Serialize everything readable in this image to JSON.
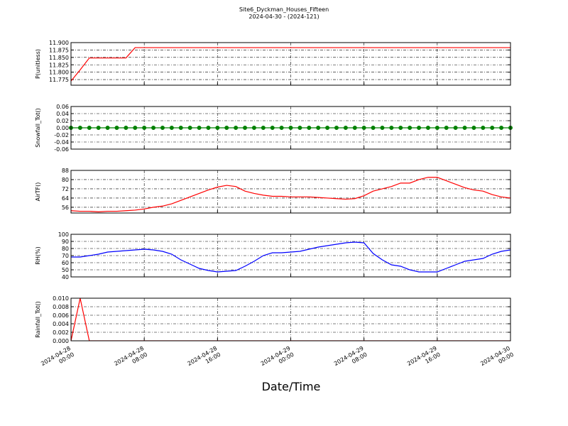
{
  "chart_data": [
    {
      "type": "line",
      "title": "Site6_Dyckman_Houses_Fifteen",
      "subtitle": "2024-04-30 - (2024-121)",
      "ylabel": "P(unitless)",
      "x": [
        "2024-04-28 00:00",
        "2024-04-28 01:00",
        "2024-04-28 02:00",
        "2024-04-28 03:00",
        "2024-04-28 04:00",
        "2024-04-28 05:00",
        "2024-04-28 06:00",
        "2024-04-28 07:00",
        "2024-04-28 08:00",
        "2024-04-28 09:00",
        "2024-04-28 10:00",
        "2024-04-28 11:00",
        "2024-04-28 12:00",
        "2024-04-28 13:00",
        "2024-04-28 14:00",
        "2024-04-28 15:00",
        "2024-04-28 16:00",
        "2024-04-28 17:00",
        "2024-04-28 18:00",
        "2024-04-28 19:00",
        "2024-04-28 20:00",
        "2024-04-28 21:00",
        "2024-04-28 22:00",
        "2024-04-28 23:00",
        "2024-04-29 00:00",
        "2024-04-29 01:00",
        "2024-04-29 02:00",
        "2024-04-29 03:00",
        "2024-04-29 04:00",
        "2024-04-29 05:00",
        "2024-04-29 06:00",
        "2024-04-29 07:00",
        "2024-04-29 08:00",
        "2024-04-29 09:00",
        "2024-04-29 10:00",
        "2024-04-29 11:00",
        "2024-04-29 12:00",
        "2024-04-29 13:00",
        "2024-04-29 14:00",
        "2024-04-29 15:00",
        "2024-04-29 16:00",
        "2024-04-29 17:00",
        "2024-04-29 18:00",
        "2024-04-29 19:00",
        "2024-04-29 20:00",
        "2024-04-29 21:00",
        "2024-04-29 22:00",
        "2024-04-29 23:00",
        "2024-04-30 00:00"
      ],
      "series": [
        {
          "name": "P(unitless)",
          "color": "#ff0000",
          "values": [
            11.77,
            11.808,
            11.848,
            11.848,
            11.848,
            11.848,
            11.848,
            11.883,
            11.883,
            11.883,
            11.883,
            11.883,
            11.883,
            11.883,
            11.883,
            11.883,
            11.883,
            11.883,
            11.883,
            11.883,
            11.883,
            11.883,
            11.883,
            11.883,
            11.883,
            11.883,
            11.883,
            11.883,
            11.883,
            11.883,
            11.883,
            11.883,
            11.883,
            11.883,
            11.883,
            11.883,
            11.883,
            11.883,
            11.883,
            11.883,
            11.883,
            11.883,
            11.883,
            11.883,
            11.883,
            11.883,
            11.883,
            11.883,
            11.883
          ]
        }
      ],
      "xlim": [
        "2024-04-28 00:00",
        "2024-04-30 00:00"
      ],
      "ylim": [
        11.756,
        11.9
      ],
      "yticks": [
        {
          "value": 11.9,
          "label": "11.900"
        },
        11.875,
        {
          "value": 11.85,
          "label": "11.850"
        },
        11.825,
        {
          "value": 11.8,
          "label": "11.800"
        },
        11.775
      ],
      "grid": true
    },
    {
      "type": "line",
      "ylabel": "Snowfall_Tot()",
      "x": [
        "2024-04-28 00:00",
        "2024-04-28 01:00",
        "2024-04-28 02:00",
        "2024-04-28 03:00",
        "2024-04-28 04:00",
        "2024-04-28 05:00",
        "2024-04-28 06:00",
        "2024-04-28 07:00",
        "2024-04-28 08:00",
        "2024-04-28 09:00",
        "2024-04-28 10:00",
        "2024-04-28 11:00",
        "2024-04-28 12:00",
        "2024-04-28 13:00",
        "2024-04-28 14:00",
        "2024-04-28 15:00",
        "2024-04-28 16:00",
        "2024-04-28 17:00",
        "2024-04-28 18:00",
        "2024-04-28 19:00",
        "2024-04-28 20:00",
        "2024-04-28 21:00",
        "2024-04-28 22:00",
        "2024-04-28 23:00",
        "2024-04-29 00:00",
        "2024-04-29 01:00",
        "2024-04-29 02:00",
        "2024-04-29 03:00",
        "2024-04-29 04:00",
        "2024-04-29 05:00",
        "2024-04-29 06:00",
        "2024-04-29 07:00",
        "2024-04-29 08:00",
        "2024-04-29 09:00",
        "2024-04-29 10:00",
        "2024-04-29 11:00",
        "2024-04-29 12:00",
        "2024-04-29 13:00",
        "2024-04-29 14:00",
        "2024-04-29 15:00",
        "2024-04-29 16:00",
        "2024-04-29 17:00",
        "2024-04-29 18:00",
        "2024-04-29 19:00",
        "2024-04-29 20:00",
        "2024-04-29 21:00",
        "2024-04-29 22:00",
        "2024-04-29 23:00",
        "2024-04-30 00:00"
      ],
      "series": [
        {
          "name": "Snowfall_Tot()",
          "color": "#008000",
          "markers": true,
          "values": [
            0,
            0,
            0,
            0,
            0,
            0,
            0,
            0,
            0,
            0,
            0,
            0,
            0,
            0,
            0,
            0,
            0,
            0,
            0,
            0,
            0,
            0,
            0,
            0,
            0,
            0,
            0,
            0,
            0,
            0,
            0,
            0,
            0,
            0,
            0,
            0,
            0,
            0,
            0,
            0,
            0,
            0,
            0,
            0,
            0,
            0,
            0,
            0,
            0
          ]
        }
      ],
      "xlim": [
        "2024-04-28 00:00",
        "2024-04-30 00:00"
      ],
      "ylim": [
        -0.06,
        0.06
      ],
      "yticks": [
        0.06,
        0.04,
        0.02,
        {
          "value": 0,
          "label": "0.00"
        },
        -0.02,
        -0.04,
        -0.06
      ],
      "grid": true
    },
    {
      "type": "line",
      "ylabel": "AirTF()",
      "x": [
        "2024-04-28 00:00",
        "2024-04-28 01:00",
        "2024-04-28 02:00",
        "2024-04-28 03:00",
        "2024-04-28 04:00",
        "2024-04-28 05:00",
        "2024-04-28 06:00",
        "2024-04-28 07:00",
        "2024-04-28 08:00",
        "2024-04-28 09:00",
        "2024-04-28 10:00",
        "2024-04-28 11:00",
        "2024-04-28 12:00",
        "2024-04-28 13:00",
        "2024-04-28 14:00",
        "2024-04-28 15:00",
        "2024-04-28 16:00",
        "2024-04-28 17:00",
        "2024-04-28 18:00",
        "2024-04-28 19:00",
        "2024-04-28 20:00",
        "2024-04-28 21:00",
        "2024-04-28 22:00",
        "2024-04-28 23:00",
        "2024-04-29 00:00",
        "2024-04-29 01:00",
        "2024-04-29 02:00",
        "2024-04-29 03:00",
        "2024-04-29 04:00",
        "2024-04-29 05:00",
        "2024-04-29 06:00",
        "2024-04-29 07:00",
        "2024-04-29 08:00",
        "2024-04-29 09:00",
        "2024-04-29 10:00",
        "2024-04-29 11:00",
        "2024-04-29 12:00",
        "2024-04-29 13:00",
        "2024-04-29 14:00",
        "2024-04-29 15:00",
        "2024-04-29 16:00",
        "2024-04-29 17:00",
        "2024-04-29 18:00",
        "2024-04-29 19:00",
        "2024-04-29 20:00",
        "2024-04-29 21:00",
        "2024-04-29 22:00",
        "2024-04-29 23:00",
        "2024-04-30 00:00"
      ],
      "series": [
        {
          "name": "AirTF()",
          "color": "#ff0000",
          "values": [
            53,
            52.5,
            52.5,
            52,
            52.5,
            52.5,
            53,
            53.5,
            54.5,
            56,
            57,
            59,
            62,
            65,
            68,
            71,
            73.5,
            75,
            74,
            70,
            68,
            66.5,
            65.5,
            65.5,
            65,
            65,
            65,
            64.5,
            64,
            63.5,
            63,
            63.5,
            66,
            70,
            72,
            74,
            77,
            77,
            80,
            82,
            82,
            79,
            76,
            73,
            71,
            70,
            67,
            65,
            64
          ]
        }
      ],
      "xlim": [
        "2024-04-28 00:00",
        "2024-04-30 00:00"
      ],
      "ylim": [
        51,
        88
      ],
      "yticks": [
        88,
        80,
        72,
        64,
        56
      ],
      "grid": true
    },
    {
      "type": "line",
      "ylabel": "RH(%)",
      "x": [
        "2024-04-28 00:00",
        "2024-04-28 01:00",
        "2024-04-28 02:00",
        "2024-04-28 03:00",
        "2024-04-28 04:00",
        "2024-04-28 05:00",
        "2024-04-28 06:00",
        "2024-04-28 07:00",
        "2024-04-28 08:00",
        "2024-04-28 09:00",
        "2024-04-28 10:00",
        "2024-04-28 11:00",
        "2024-04-28 12:00",
        "2024-04-28 13:00",
        "2024-04-28 14:00",
        "2024-04-28 15:00",
        "2024-04-28 16:00",
        "2024-04-28 17:00",
        "2024-04-28 18:00",
        "2024-04-28 19:00",
        "2024-04-28 20:00",
        "2024-04-28 21:00",
        "2024-04-28 22:00",
        "2024-04-28 23:00",
        "2024-04-29 00:00",
        "2024-04-29 01:00",
        "2024-04-29 02:00",
        "2024-04-29 03:00",
        "2024-04-29 04:00",
        "2024-04-29 05:00",
        "2024-04-29 06:00",
        "2024-04-29 07:00",
        "2024-04-29 08:00",
        "2024-04-29 09:00",
        "2024-04-29 10:00",
        "2024-04-29 11:00",
        "2024-04-29 12:00",
        "2024-04-29 13:00",
        "2024-04-29 14:00",
        "2024-04-29 15:00",
        "2024-04-29 16:00",
        "2024-04-29 17:00",
        "2024-04-29 18:00",
        "2024-04-29 19:00",
        "2024-04-29 20:00",
        "2024-04-29 21:00",
        "2024-04-29 22:00",
        "2024-04-29 23:00",
        "2024-04-30 00:00"
      ],
      "series": [
        {
          "name": "RH(%)",
          "color": "#0000ff",
          "values": [
            68,
            68,
            70,
            72,
            75,
            76,
            77,
            78,
            79,
            78,
            76,
            72,
            64,
            58,
            52,
            49,
            47,
            48,
            49,
            55,
            62,
            70,
            74,
            74,
            75,
            76,
            79,
            82,
            84,
            86,
            88,
            89,
            88,
            73,
            64,
            57,
            55,
            50,
            47,
            47,
            47,
            52,
            57,
            62,
            64,
            66,
            72,
            76,
            78
          ]
        }
      ],
      "xlim": [
        "2024-04-28 00:00",
        "2024-04-30 00:00"
      ],
      "ylim": [
        40,
        100
      ],
      "yticks": [
        100,
        90,
        80,
        70,
        60,
        50,
        40
      ],
      "grid": true
    },
    {
      "type": "line",
      "ylabel": "Rainfall_Tot()",
      "xlabel": "Date/Time",
      "x": [
        "2024-04-28 00:00",
        "2024-04-28 01:00",
        "2024-04-28 02:00",
        "2024-04-28 03:00",
        "2024-04-28 04:00",
        "2024-04-28 05:00",
        "2024-04-28 06:00",
        "2024-04-28 07:00",
        "2024-04-28 08:00",
        "2024-04-28 09:00",
        "2024-04-28 10:00",
        "2024-04-28 11:00",
        "2024-04-28 12:00",
        "2024-04-28 13:00",
        "2024-04-28 14:00",
        "2024-04-28 15:00",
        "2024-04-28 16:00",
        "2024-04-28 17:00",
        "2024-04-28 18:00",
        "2024-04-28 19:00",
        "2024-04-28 20:00",
        "2024-04-28 21:00",
        "2024-04-28 22:00",
        "2024-04-28 23:00",
        "2024-04-29 00:00",
        "2024-04-29 01:00",
        "2024-04-29 02:00",
        "2024-04-29 03:00",
        "2024-04-29 04:00",
        "2024-04-29 05:00",
        "2024-04-29 06:00",
        "2024-04-29 07:00",
        "2024-04-29 08:00",
        "2024-04-29 09:00",
        "2024-04-29 10:00",
        "2024-04-29 11:00",
        "2024-04-29 12:00",
        "2024-04-29 13:00",
        "2024-04-29 14:00",
        "2024-04-29 15:00",
        "2024-04-29 16:00",
        "2024-04-29 17:00",
        "2024-04-29 18:00",
        "2024-04-29 19:00",
        "2024-04-29 20:00",
        "2024-04-29 21:00",
        "2024-04-29 22:00",
        "2024-04-29 23:00",
        "2024-04-30 00:00"
      ],
      "series": [
        {
          "name": "Rainfall_Tot()",
          "color": "#ff0000",
          "values": [
            0,
            0.01,
            0,
            0,
            0,
            0,
            0,
            0,
            0,
            0,
            0,
            0,
            0,
            0,
            0,
            0,
            0,
            0,
            0,
            0,
            0,
            0,
            0,
            0,
            0,
            0,
            0,
            0,
            0,
            0,
            0,
            0,
            0,
            0,
            0,
            0,
            0,
            0,
            0,
            0,
            0,
            0,
            0,
            0,
            0,
            0,
            0,
            0,
            0
          ]
        }
      ],
      "xlim": [
        "2024-04-28 00:00",
        "2024-04-30 00:00"
      ],
      "xticks": [
        "2024-04-28 00:00",
        "2024-04-28 08:00",
        "2024-04-28 16:00",
        "2024-04-29 00:00",
        "2024-04-29 08:00",
        "2024-04-29 16:00",
        "2024-04-30 00:00"
      ],
      "ylim": [
        0,
        0.01
      ],
      "yticks": [
        {
          "value": 0.01,
          "label": "0.010"
        },
        0.008,
        0.006,
        0.004,
        0.002,
        {
          "value": 0,
          "label": "0.000"
        }
      ],
      "grid": true
    }
  ]
}
